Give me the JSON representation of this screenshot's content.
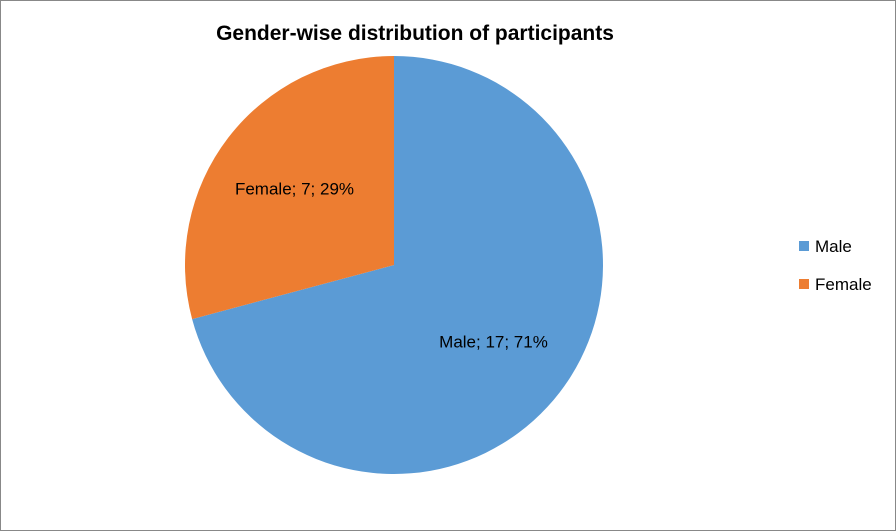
{
  "chart_data": {
    "type": "pie",
    "title": "Gender-wise distribution  of participants",
    "categories": [
      "Male",
      "Female"
    ],
    "values": [
      17,
      7
    ],
    "percentages": [
      71,
      29
    ],
    "colors": [
      "#5B9BD5",
      "#ED7D31"
    ],
    "data_labels": [
      "Male; 17; 71%",
      "Female; 7; 29%"
    ],
    "start_angle_deg": 0,
    "direction": "clockwise",
    "legend": {
      "position": "right",
      "entries": [
        "Male",
        "Female"
      ]
    }
  }
}
